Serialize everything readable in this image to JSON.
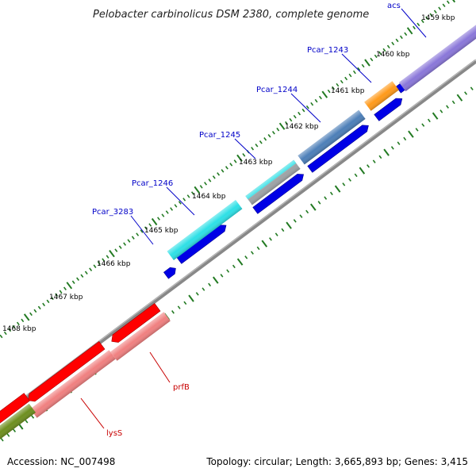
{
  "title": "Pelobacter carbinolicus DSM 2380, complete genome",
  "accession_text": "Accession: NC_007498",
  "topology_text": "Topology: circular; Length: 3,665,893 bp; Genes: 3,415",
  "colors": {
    "backbone": "#7f7f7f",
    "ticks": "#227a22",
    "cds_forward_label": "#0000c8",
    "cds_reverse_label": "#c80000",
    "forward_strand_cds": "#0000e6",
    "reverse_strand_cds": "#ff0000"
  },
  "scale_ticks_kbp": [
    1459,
    1460,
    1461,
    1462,
    1463,
    1464,
    1465,
    1466,
    1467,
    1468
  ],
  "scale_unit": "kbp",
  "genes": [
    {
      "name": "acs",
      "strand": "+",
      "color": "#8a77d9",
      "label_color": "#0000c8",
      "labeled": true
    },
    {
      "name": "Pcar_1243",
      "strand": "+",
      "color": "#ff9a1a",
      "label_color": "#0000c8",
      "labeled": true
    },
    {
      "name": "Pcar_1244",
      "strand": "+",
      "color": "#4d7fb8",
      "label_color": "#0000c8",
      "labeled": true
    },
    {
      "name": "Pcar_1245",
      "strand": "+",
      "color": "#9ea3a6",
      "label_color": "#0000c8",
      "labeled": true
    },
    {
      "name": "Pcar_1246",
      "strand": "+",
      "color": "#2ee0e6",
      "label_color": "#0000c8",
      "labeled": true
    },
    {
      "name": "Pcar_3283",
      "strand": "+",
      "color": "#0000e6",
      "label_color": "#0000c8",
      "labeled": true
    },
    {
      "name": "prfB",
      "strand": "-",
      "color": "#ff1a1a",
      "label_color": "#c80000",
      "labeled": true
    },
    {
      "name": "lysS",
      "strand": "-",
      "color": "#ff1a1a",
      "label_color": "#c80000",
      "labeled": true
    },
    {
      "name": "",
      "strand": "-",
      "color": "#6e8f1f",
      "label_color": "#c80000",
      "labeled": false
    }
  ]
}
